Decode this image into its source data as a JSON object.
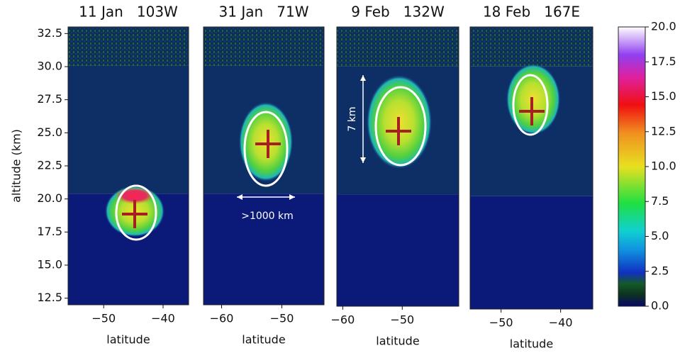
{
  "chart_data": [
    {
      "type": "heatmap",
      "title": "11 Jan   103W",
      "xlabel": "latitude",
      "ylabel": "altitude (km)",
      "xlim": [
        -56,
        -35.7
      ],
      "xticks": [
        {
          "value": -50,
          "label": "−50"
        },
        {
          "value": -40,
          "label": "−40"
        }
      ],
      "ylim": [
        12,
        33
      ],
      "yticks": [
        12.5,
        {
          "value": 15,
          "label": "15.0"
        },
        17.5,
        {
          "value": 20,
          "label": "20.0"
        },
        22.5,
        {
          "value": 25,
          "label": "25.0"
        },
        27.5,
        {
          "value": 30,
          "label": "30.0"
        },
        32.5
      ]
    },
    {
      "type": "heatmap",
      "title": "31 Jan   71W",
      "xlabel": "latitude",
      "annotation": ">1000 km",
      "xlim": [
        -63,
        -43
      ],
      "xticks": [
        {
          "value": -60,
          "label": "−60"
        },
        {
          "value": -50,
          "label": "−50"
        }
      ],
      "ylim": [
        12,
        33
      ]
    },
    {
      "type": "heatmap",
      "title": "9 Feb   132W",
      "xlabel": "latitude",
      "annotation": "7 km",
      "xlim": [
        -61,
        -40.5
      ],
      "xticks": [
        {
          "value": -60,
          "label": "−60"
        },
        {
          "value": -50,
          "label": "−50"
        }
      ],
      "ylim": [
        12,
        33
      ]
    },
    {
      "type": "heatmap",
      "title": "18 Feb   167E",
      "xlabel": "latitude",
      "xlim": [
        -55.2,
        -34.6
      ],
      "xticks": [
        {
          "value": -50,
          "label": "−50"
        },
        {
          "value": -40,
          "label": "−40"
        }
      ],
      "ylim": [
        12,
        33
      ]
    },
    {
      "type": "colorbar",
      "ylim": [
        0,
        20
      ],
      "yticks": [
        {
          "value": 0,
          "label": "0.0"
        },
        2.5,
        {
          "value": 5,
          "label": "5.0"
        },
        7.5,
        {
          "value": 10,
          "label": "10.0"
        },
        12.5,
        {
          "value": 15,
          "label": "15.0"
        },
        17.5,
        {
          "value": 20,
          "label": "20.0"
        }
      ]
    }
  ]
}
